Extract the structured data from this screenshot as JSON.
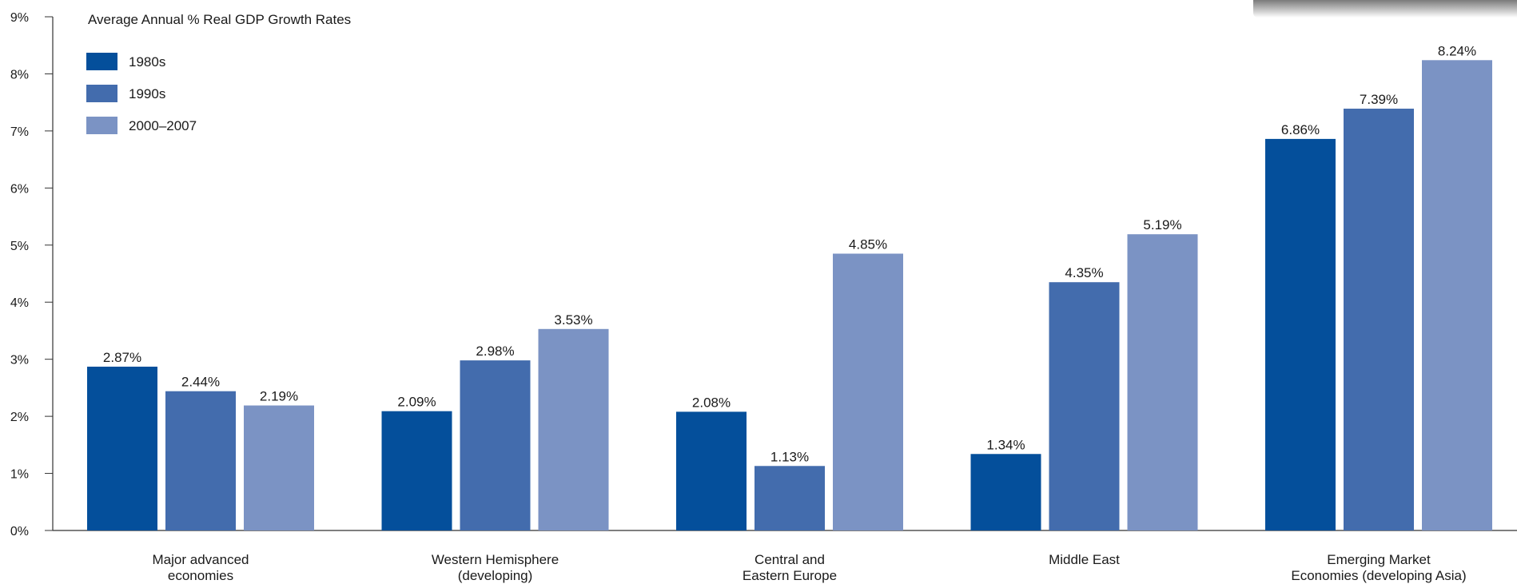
{
  "chart_data": {
    "type": "bar",
    "title": "Average Annual % Real GDP Growth Rates",
    "categories": [
      [
        "Major advanced",
        "economies"
      ],
      [
        "Western Hemisphere",
        "(developing)"
      ],
      [
        "Central and",
        "Eastern Europe"
      ],
      [
        "Middle East"
      ],
      [
        "Emerging Market",
        "Economies (developing Asia)"
      ]
    ],
    "series": [
      {
        "name": "1980s",
        "color": "#044f9b",
        "values": [
          2.87,
          2.09,
          2.08,
          1.34,
          6.86
        ]
      },
      {
        "name": "1990s",
        "color": "#436cad",
        "values": [
          2.44,
          2.98,
          1.13,
          4.35,
          7.39
        ]
      },
      {
        "name": "2000–2007",
        "color": "#7b93c4",
        "values": [
          2.19,
          3.53,
          4.85,
          5.19,
          8.24
        ]
      }
    ],
    "data_labels": [
      [
        "2.87%",
        "2.44%",
        "2.19%"
      ],
      [
        "2.09%",
        "2.98%",
        "3.53%"
      ],
      [
        "2.08%",
        "1.13%",
        "4.85%"
      ],
      [
        "1.34%",
        "4.35%",
        "5.19%"
      ],
      [
        "6.86%",
        "7.39%",
        "8.24%"
      ]
    ],
    "ylim": [
      0,
      9
    ],
    "yticks": [
      0,
      1,
      2,
      3,
      4,
      5,
      6,
      7,
      8,
      9
    ],
    "ytick_labels": [
      "0%",
      "1%",
      "2%",
      "3%",
      "4%",
      "5%",
      "6%",
      "7%",
      "8%",
      "9%"
    ],
    "xlabel": "",
    "ylabel": "",
    "grid": false,
    "legend_position": "top-left"
  }
}
